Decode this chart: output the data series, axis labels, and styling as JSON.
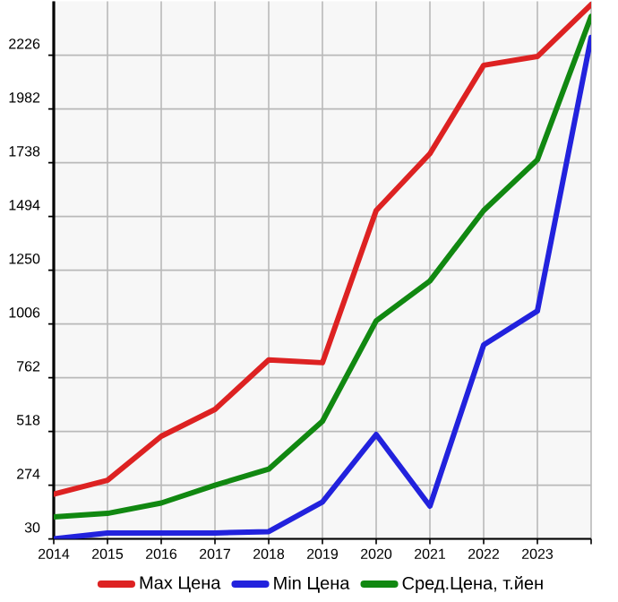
{
  "chart_data": {
    "type": "line",
    "x": [
      2014,
      2015,
      2016,
      2017,
      2018,
      2019,
      2020,
      2021,
      2022,
      2023,
      2024
    ],
    "series": [
      {
        "name": "Max Цена",
        "color": "#dd2222",
        "values": [
          233,
          296,
          496,
          618,
          843,
          830,
          1521,
          1779,
          2180,
          2220,
          2456
        ]
      },
      {
        "name": "Min Цена",
        "color": "#2222dd",
        "values": [
          30,
          57,
          57,
          57,
          63,
          198,
          504,
          179,
          911,
          1065,
          2307
        ]
      },
      {
        "name": "Сред.Цена, т.йен",
        "color": "#118811",
        "values": [
          130,
          146,
          193,
          274,
          347,
          564,
          1020,
          1201,
          1521,
          1751,
          2402
        ]
      }
    ],
    "xlim": [
      2014,
      2024
    ],
    "xticks": [
      2014,
      2015,
      2016,
      2017,
      2018,
      2019,
      2020,
      2021,
      2022,
      2023,
      {
        "value": 2024,
        "label": null
      }
    ],
    "ylim": [
      30,
      2470
    ],
    "yticks": [
      30,
      274,
      518,
      762,
      1006,
      1250,
      1494,
      1738,
      1982,
      2226
    ],
    "grid": true,
    "legend": "bottom",
    "marker": "none",
    "line_style": "solid"
  }
}
